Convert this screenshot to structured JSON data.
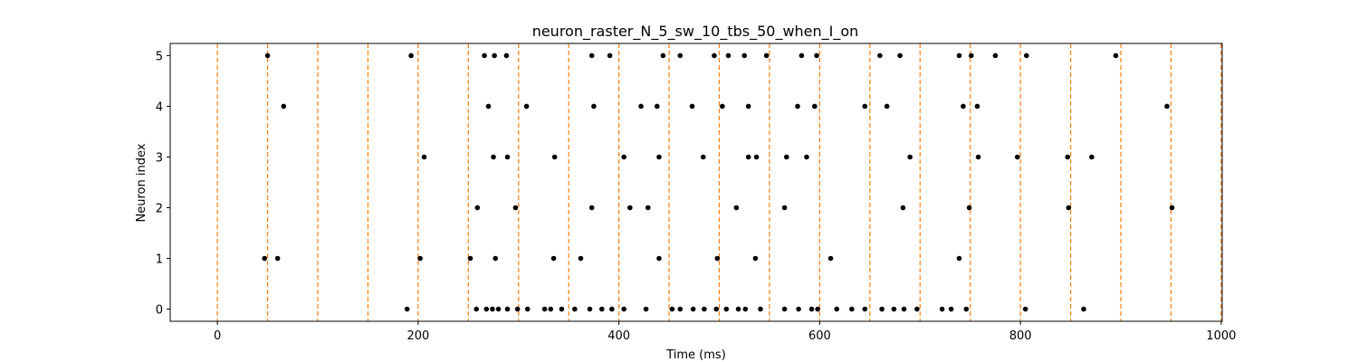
{
  "chart_data": {
    "type": "scatter",
    "title": "neuron_raster_N_5_sw_10_tbs_50_when_I_on",
    "xlabel": "Time (ms)",
    "ylabel": "Neuron index",
    "xlim": [
      -47,
      1001
    ],
    "ylim": [
      -0.24,
      5.24
    ],
    "xticks": [
      0,
      200,
      400,
      600,
      800,
      1000
    ],
    "yticks": [
      0,
      1,
      2,
      3,
      4,
      5
    ],
    "grid": false,
    "vlines": [
      0,
      50,
      100,
      150,
      200,
      250,
      300,
      350,
      400,
      450,
      500,
      550,
      600,
      650,
      700,
      750,
      800,
      850,
      900,
      950,
      1000
    ],
    "vline_color": "#ff7f0e",
    "spike_color": "#000000",
    "series": [
      {
        "neuron": 0,
        "times": [
          189,
          258,
          268,
          274,
          280,
          289,
          299,
          309,
          326,
          332,
          343,
          356,
          371,
          383,
          393,
          405,
          427,
          453,
          461,
          474,
          485,
          497,
          507,
          519,
          526,
          541,
          565,
          579,
          592,
          598,
          617,
          632,
          645,
          662,
          674,
          684,
          697,
          722,
          731,
          746,
          805,
          863
        ]
      },
      {
        "neuron": 1,
        "times": [
          47,
          60,
          202,
          252,
          277,
          335,
          362,
          440,
          498,
          536,
          611,
          739
        ]
      },
      {
        "neuron": 2,
        "times": [
          259,
          297,
          373,
          411,
          429,
          517,
          565,
          683,
          749,
          848,
          951
        ]
      },
      {
        "neuron": 3,
        "times": [
          206,
          275,
          289,
          336,
          405,
          440,
          484,
          529,
          537,
          567,
          587,
          690,
          758,
          797,
          847,
          871
        ]
      },
      {
        "neuron": 4,
        "times": [
          66,
          270,
          308,
          375,
          422,
          438,
          473,
          503,
          529,
          578,
          595,
          645,
          667,
          743,
          757,
          946
        ]
      },
      {
        "neuron": 5,
        "times": [
          50,
          193,
          266,
          276,
          288,
          373,
          391,
          444,
          461,
          495,
          509,
          525,
          547,
          582,
          597,
          660,
          680,
          739,
          751,
          775,
          806,
          895
        ]
      }
    ]
  }
}
